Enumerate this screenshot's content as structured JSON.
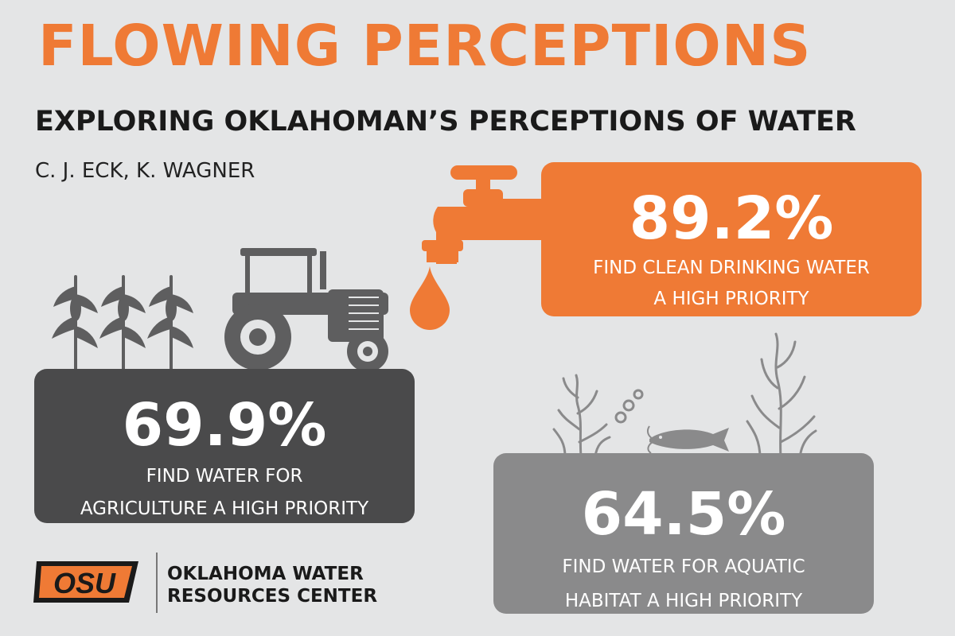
{
  "header": {
    "title": "FLOWING PERCEPTIONS",
    "subtitle": "EXPLORING OKLAHOMAN’S PERCEPTIONS OF WATER",
    "authors": "C. J. ECK, K. WAGNER"
  },
  "stats": {
    "drinking": {
      "percent": "89.2%",
      "line1": "FIND CLEAN DRINKING WATER",
      "line2": "A HIGH PRIORITY",
      "fraction": 0.892
    },
    "agriculture": {
      "percent": "69.9%",
      "line1": "FIND WATER FOR",
      "line2": "AGRICULTURE A HIGH PRIORITY",
      "fraction": 0.699
    },
    "aquatic": {
      "percent": "64.5%",
      "line1": "FIND WATER FOR AQUATIC",
      "line2": "HABITAT A HIGH PRIORITY",
      "fraction": 0.645
    }
  },
  "footer": {
    "logo_text": "OSU",
    "org_line1": "OKLAHOMA WATER",
    "org_line2": "RESOURCES CENTER"
  },
  "colors": {
    "background": "#e4e5e6",
    "orange": "#ef7a35",
    "dark_gray": "#4a4a4b",
    "mid_gray": "#8a8a8b",
    "icon_gray": "#5e5e5f"
  },
  "icons": [
    "faucet-icon",
    "water-drop-icon",
    "corn-icon",
    "tractor-icon",
    "seaweed-icon",
    "bubbles-icon",
    "catfish-icon",
    "osu-logo"
  ]
}
